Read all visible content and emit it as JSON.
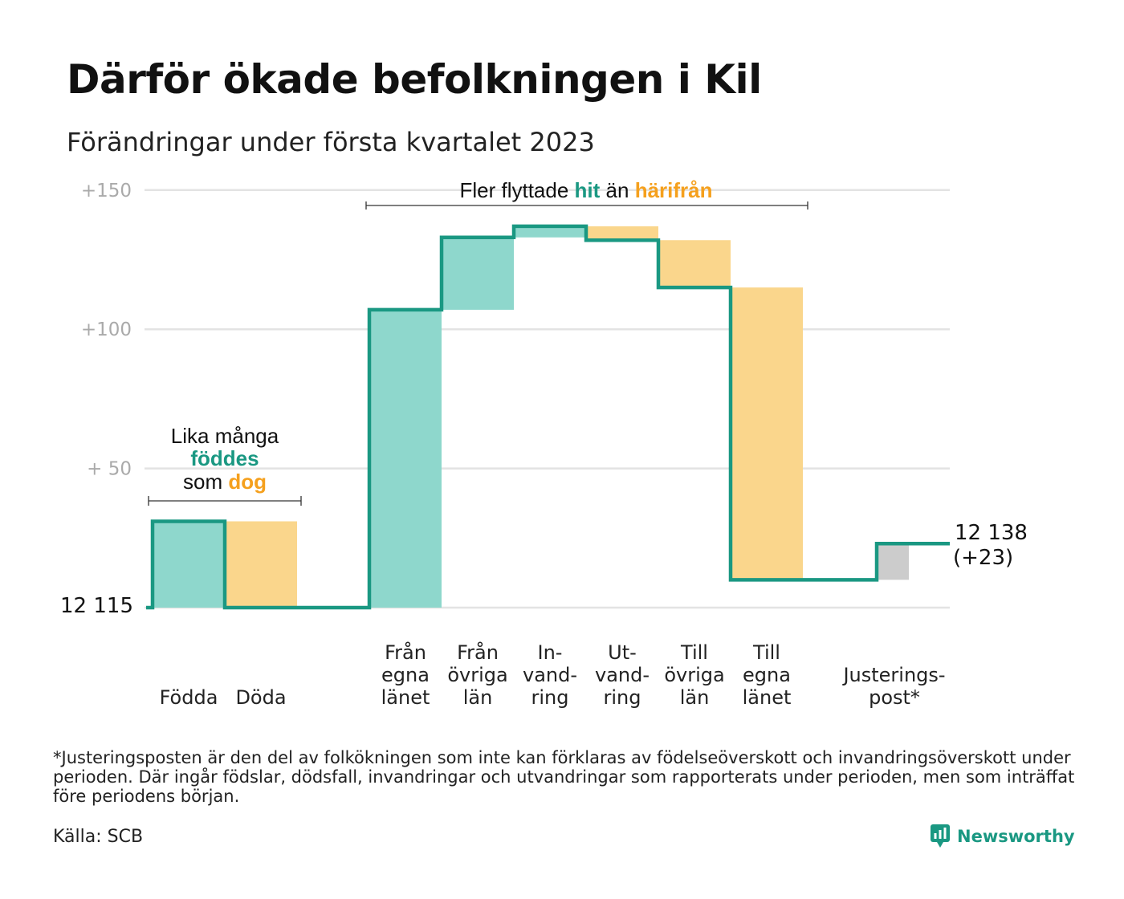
{
  "title": "Därför ökade befolkningen i Kil",
  "subtitle": "Förändringar under första kvartalet 2023",
  "chart_data": {
    "type": "waterfall",
    "baseline": 12115,
    "baseline_label": "12 115",
    "end_label": "12 138",
    "end_change_label": "(+23)",
    "ylim": [
      0,
      150
    ],
    "yticks": [
      {
        "value": 150,
        "label": "+150"
      },
      {
        "value": 100,
        "label": "+100"
      },
      {
        "value": 50,
        "label": "+ 50"
      }
    ],
    "grid": true,
    "categories": [
      {
        "lines": [
          "Födda"
        ],
        "value": 31
      },
      {
        "lines": [
          "Döda"
        ],
        "value": -31
      },
      {
        "lines": [
          "Från",
          "egna",
          "länet"
        ],
        "value": 107
      },
      {
        "lines": [
          "Från",
          "övriga",
          "län"
        ],
        "value": 26
      },
      {
        "lines": [
          "In-",
          "vand-",
          "ring"
        ],
        "value": 4
      },
      {
        "lines": [
          "Ut-",
          "vand-",
          "ring"
        ],
        "value": -5
      },
      {
        "lines": [
          "Till",
          "övriga",
          "län"
        ],
        "value": -17
      },
      {
        "lines": [
          "Till",
          "egna",
          "länet"
        ],
        "value": -105
      },
      {
        "lines": [
          "Justerings-",
          "post*"
        ],
        "value": 13
      }
    ],
    "colors": {
      "increase": "#8ed7cc",
      "decrease": "#fad68c",
      "adjustment": "#cccccc",
      "line": "#1a9882",
      "teal_text": "#1a9882",
      "orange_text": "#f5a01d"
    },
    "annotations": {
      "births_line1": "Lika många",
      "births_hl1": "föddes",
      "births_pre2": "som",
      "births_hl2": "dog",
      "migration_pre": "Fler flyttade",
      "migration_hl1": "hit",
      "migration_mid": "än",
      "migration_hl2": "härifrån"
    }
  },
  "footnote": "*Justeringsposten är den del av folkökningen som inte kan förklaras av födelseöverskott och invandringsöverskott under perioden. Där ingår födslar, dödsfall, invandringar och utvandringar som rapporterats under perioden, men som inträffat före periodens början.",
  "source": "Källa: SCB",
  "brand": "Newsworthy"
}
